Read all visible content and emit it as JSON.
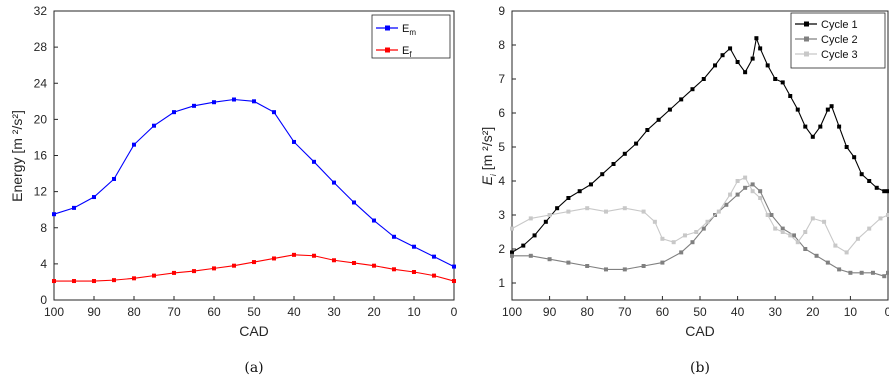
{
  "chart_data": [
    {
      "type": "line",
      "xlabel": "CAD",
      "ylabel": "Energy [m  ²/s²]",
      "xlim": [
        100,
        0
      ],
      "x_reversed": true,
      "ylim": [
        0,
        32
      ],
      "xticks": [
        100,
        90,
        80,
        70,
        60,
        50,
        40,
        30,
        20,
        10,
        0
      ],
      "yticks": [
        0,
        4,
        8,
        12,
        16,
        20,
        24,
        28,
        32
      ],
      "legend_position": "top-right",
      "caption": "(a)",
      "series": [
        {
          "name": "E_m",
          "label_base": "E",
          "label_sub": "m",
          "color": "#0000ff",
          "marker": "square",
          "x": [
            100,
            95,
            90,
            85,
            80,
            75,
            70,
            65,
            60,
            55,
            50,
            45,
            40,
            35,
            30,
            25,
            20,
            15,
            10,
            5,
            0
          ],
          "y": [
            9.5,
            10.2,
            11.4,
            13.4,
            17.2,
            19.3,
            20.8,
            21.5,
            21.9,
            22.2,
            22.0,
            20.8,
            17.5,
            15.3,
            13.0,
            10.8,
            8.8,
            7.0,
            5.9,
            4.8,
            3.7
          ]
        },
        {
          "name": "E_f",
          "label_base": "E",
          "label_sub": "f",
          "color": "#ff0000",
          "marker": "square",
          "x": [
            100,
            95,
            90,
            85,
            80,
            75,
            70,
            65,
            60,
            55,
            50,
            45,
            40,
            35,
            30,
            25,
            20,
            15,
            10,
            5,
            0
          ],
          "y": [
            2.1,
            2.1,
            2.1,
            2.2,
            2.4,
            2.7,
            3.0,
            3.2,
            3.5,
            3.8,
            4.2,
            4.6,
            5.0,
            4.9,
            4.4,
            4.1,
            3.8,
            3.4,
            3.1,
            2.7,
            2.1
          ]
        }
      ]
    },
    {
      "type": "line",
      "xlabel": "CAD",
      "ylabel_base": "E",
      "ylabel_sub": "i",
      "ylabel_rest": "[m  ²/s²]",
      "xlim": [
        100,
        0
      ],
      "x_reversed": true,
      "ylim": [
        0.5,
        9
      ],
      "xticks": [
        100,
        90,
        80,
        70,
        60,
        50,
        40,
        30,
        20,
        10,
        0
      ],
      "yticks": [
        1,
        2,
        3,
        4,
        5,
        6,
        7,
        8,
        9
      ],
      "legend_position": "top-right",
      "caption": "(b)",
      "series": [
        {
          "name": "Cycle 1",
          "color": "#000000",
          "marker": "square",
          "x": [
            100,
            97,
            94,
            91,
            88,
            85,
            82,
            79,
            76,
            73,
            70,
            67,
            64,
            61,
            58,
            55,
            52,
            49,
            46,
            44,
            42,
            40,
            38,
            36,
            35,
            34,
            32,
            30,
            28,
            26,
            24,
            22,
            20,
            18,
            16,
            15,
            13,
            11,
            9,
            7,
            5,
            3,
            1,
            0
          ],
          "y": [
            1.9,
            2.1,
            2.4,
            2.8,
            3.2,
            3.5,
            3.7,
            3.9,
            4.2,
            4.5,
            4.8,
            5.1,
            5.5,
            5.8,
            6.1,
            6.4,
            6.7,
            7.0,
            7.4,
            7.7,
            7.9,
            7.5,
            7.2,
            7.6,
            8.2,
            7.9,
            7.4,
            7.0,
            6.9,
            6.5,
            6.1,
            5.6,
            5.3,
            5.6,
            6.1,
            6.2,
            5.6,
            5.0,
            4.7,
            4.2,
            4.0,
            3.8,
            3.7,
            3.7
          ]
        },
        {
          "name": "Cycle 2",
          "color": "#808080",
          "marker": "square",
          "x": [
            100,
            95,
            90,
            85,
            80,
            75,
            70,
            65,
            60,
            55,
            52,
            49,
            46,
            43,
            40,
            38,
            36,
            34,
            31,
            28,
            25,
            22,
            19,
            16,
            13,
            10,
            7,
            4,
            1,
            0
          ],
          "y": [
            1.8,
            1.8,
            1.7,
            1.6,
            1.5,
            1.4,
            1.4,
            1.5,
            1.6,
            1.9,
            2.2,
            2.6,
            3.0,
            3.3,
            3.6,
            3.8,
            3.9,
            3.7,
            3.0,
            2.6,
            2.4,
            2.0,
            1.8,
            1.6,
            1.4,
            1.3,
            1.3,
            1.3,
            1.2,
            1.3
          ]
        },
        {
          "name": "Cycle 3",
          "color": "#c8c8c8",
          "marker": "square",
          "x": [
            100,
            95,
            90,
            85,
            80,
            75,
            70,
            65,
            62,
            60,
            57,
            54,
            51,
            48,
            45,
            42,
            40,
            38,
            36,
            34,
            32,
            30,
            28,
            26,
            24,
            22,
            20,
            17,
            14,
            11,
            8,
            5,
            2,
            0
          ],
          "y": [
            2.6,
            2.9,
            3.0,
            3.1,
            3.2,
            3.1,
            3.2,
            3.1,
            2.8,
            2.3,
            2.2,
            2.4,
            2.5,
            2.8,
            3.1,
            3.6,
            4.0,
            4.1,
            3.7,
            3.5,
            3.0,
            2.6,
            2.5,
            2.4,
            2.2,
            2.5,
            2.9,
            2.8,
            2.1,
            1.9,
            2.3,
            2.6,
            2.9,
            3.0
          ]
        }
      ]
    }
  ]
}
